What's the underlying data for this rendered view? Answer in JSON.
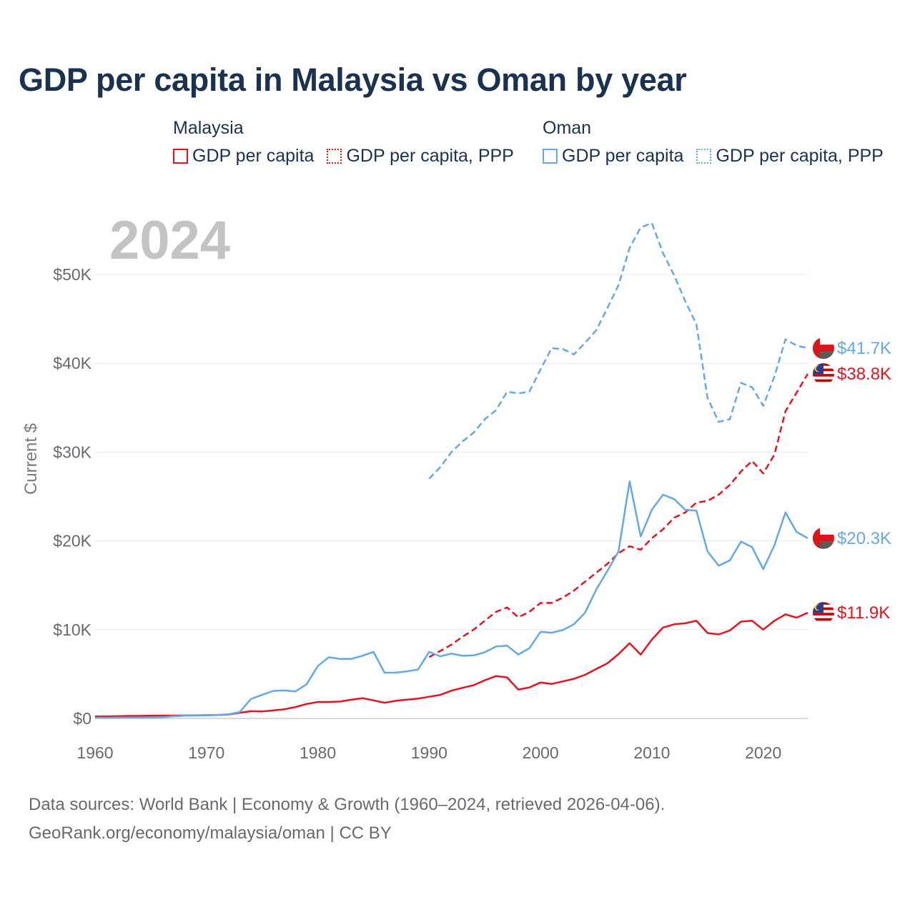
{
  "title": "GDP per capita in Malaysia vs Oman by year",
  "legend": {
    "groups": [
      {
        "title": "Malaysia",
        "color": "#e8121e",
        "items": [
          {
            "label": "GDP per capita",
            "style": "solid"
          },
          {
            "label": "GDP per capita, PPP",
            "style": "dotted"
          }
        ]
      },
      {
        "title": "Oman",
        "color": "#64a8e6",
        "items": [
          {
            "label": "GDP per capita",
            "style": "solid"
          },
          {
            "label": "GDP per capita, PPP",
            "style": "dotted"
          }
        ]
      }
    ]
  },
  "footer": {
    "line1": "Data sources: World Bank | Economy & Growth (1960–2024, retrieved 2026-04-06).",
    "line2": "GeoRank.org/economy/malaysia/oman | CC BY"
  },
  "chart_data": {
    "type": "line",
    "year_label": "2024",
    "ylabel": "Current $",
    "xlim": [
      1960,
      2024
    ],
    "ylim": [
      0,
      50000
    ],
    "xticks": [
      1960,
      1970,
      1980,
      1990,
      2000,
      2010,
      2020
    ],
    "xtick_labels": [
      "1960",
      "1970",
      "1980",
      "1990",
      "2000",
      "2010",
      "2020"
    ],
    "yticks": [
      0,
      10000,
      20000,
      30000,
      40000,
      50000
    ],
    "ytick_labels": [
      "$0",
      "$10K",
      "$20K",
      "$30K",
      "$40K",
      "$50K"
    ],
    "grid": true,
    "series": [
      {
        "id": "malaysia-gdp",
        "name": "Malaysia GDP per capita",
        "country": "Malaysia",
        "color": "#e8121e",
        "dash": "solid",
        "x": [
          1960,
          1961,
          1962,
          1963,
          1964,
          1965,
          1966,
          1967,
          1968,
          1969,
          1970,
          1971,
          1972,
          1973,
          1974,
          1975,
          1976,
          1977,
          1978,
          1979,
          1980,
          1981,
          1982,
          1983,
          1984,
          1985,
          1986,
          1987,
          1988,
          1989,
          1990,
          1991,
          1992,
          1993,
          1994,
          1995,
          1996,
          1997,
          1998,
          1999,
          2000,
          2001,
          2002,
          2003,
          2004,
          2005,
          2006,
          2007,
          2008,
          2009,
          2010,
          2011,
          2012,
          2013,
          2014,
          2015,
          2016,
          2017,
          2018,
          2019,
          2020,
          2021,
          2022,
          2023,
          2024
        ],
        "y": [
          235,
          235,
          250,
          280,
          280,
          310,
          320,
          320,
          330,
          350,
          360,
          390,
          440,
          640,
          810,
          780,
          900,
          1030,
          1280,
          1630,
          1850,
          1850,
          1900,
          2100,
          2280,
          2040,
          1760,
          1980,
          2110,
          2230,
          2440,
          2650,
          3120,
          3450,
          3740,
          4300,
          4770,
          4620,
          3250,
          3490,
          4040,
          3880,
          4170,
          4460,
          4910,
          5560,
          6200,
          7240,
          8470,
          7190,
          8880,
          10230,
          10600,
          10720,
          11000,
          9620,
          9460,
          9900,
          10900,
          11000,
          10000,
          11000,
          11720,
          11350,
          11900
        ],
        "end_label": "$11.9K"
      },
      {
        "id": "malaysia-ppp",
        "name": "Malaysia GDP per capita, PPP",
        "country": "Malaysia",
        "color": "#e8121e",
        "dash": "dashed",
        "x": [
          1990,
          1991,
          1992,
          1993,
          1994,
          1995,
          1996,
          1997,
          1998,
          1999,
          2000,
          2001,
          2002,
          2003,
          2004,
          2005,
          2006,
          2007,
          2008,
          2009,
          2010,
          2011,
          2012,
          2013,
          2014,
          2015,
          2016,
          2017,
          2018,
          2019,
          2020,
          2021,
          2022,
          2023,
          2024
        ],
        "y": [
          6900,
          7600,
          8300,
          9200,
          10000,
          11000,
          12000,
          12500,
          11400,
          12000,
          13000,
          13000,
          13600,
          14400,
          15400,
          16400,
          17400,
          18600,
          19400,
          19000,
          20300,
          21300,
          22600,
          23200,
          24300,
          24500,
          25200,
          26300,
          27800,
          29000,
          27600,
          29700,
          34600,
          36700,
          38800
        ],
        "end_label": "$38.8K"
      },
      {
        "id": "oman-gdp",
        "name": "Oman GDP per capita",
        "country": "Oman",
        "color": "#64a8e6",
        "dash": "solid",
        "x": [
          1960,
          1961,
          1962,
          1963,
          1964,
          1965,
          1966,
          1967,
          1968,
          1969,
          1970,
          1971,
          1972,
          1973,
          1974,
          1975,
          1976,
          1977,
          1978,
          1979,
          1980,
          1981,
          1982,
          1983,
          1984,
          1985,
          1986,
          1987,
          1988,
          1989,
          1990,
          1991,
          1992,
          1993,
          1994,
          1995,
          1996,
          1997,
          1998,
          1999,
          2000,
          2001,
          2002,
          2003,
          2004,
          2005,
          2006,
          2007,
          2008,
          2009,
          2010,
          2011,
          2012,
          2013,
          2014,
          2015,
          2016,
          2017,
          2018,
          2019,
          2020,
          2021,
          2022,
          2023,
          2024
        ],
        "y": [
          80,
          80,
          90,
          100,
          110,
          110,
          130,
          230,
          300,
          320,
          330,
          380,
          460,
          720,
          2200,
          2650,
          3100,
          3150,
          3040,
          3850,
          5900,
          6900,
          6700,
          6700,
          7050,
          7500,
          5150,
          5150,
          5300,
          5500,
          7500,
          7000,
          7300,
          7050,
          7100,
          7450,
          8100,
          8200,
          7200,
          7900,
          9750,
          9650,
          9950,
          10600,
          11900,
          14500,
          16600,
          18800,
          26700,
          20500,
          23500,
          25200,
          24700,
          23500,
          23400,
          18800,
          17200,
          17800,
          19900,
          19300,
          16800,
          19500,
          23200,
          21000,
          20300
        ],
        "end_label": "$20.3K"
      },
      {
        "id": "oman-ppp",
        "name": "Oman GDP per capita, PPP",
        "country": "Oman",
        "color": "#64a8e6",
        "dash": "dashed",
        "x": [
          1990,
          1991,
          1992,
          1993,
          1994,
          1995,
          1996,
          1997,
          1998,
          1999,
          2000,
          2001,
          2002,
          2003,
          2004,
          2005,
          2006,
          2007,
          2008,
          2009,
          2010,
          2011,
          2012,
          2013,
          2014,
          2015,
          2016,
          2017,
          2018,
          2019,
          2020,
          2021,
          2022,
          2023,
          2024
        ],
        "y": [
          27000,
          28300,
          30000,
          31200,
          32200,
          33700,
          34700,
          36800,
          36600,
          36800,
          39300,
          41700,
          41600,
          41000,
          42300,
          43700,
          46200,
          48800,
          53000,
          55300,
          55800,
          52400,
          49900,
          47000,
          44400,
          36100,
          33400,
          33700,
          37800,
          37300,
          35200,
          38500,
          42700,
          42000,
          41700
        ],
        "end_label": "$41.7K"
      }
    ]
  }
}
